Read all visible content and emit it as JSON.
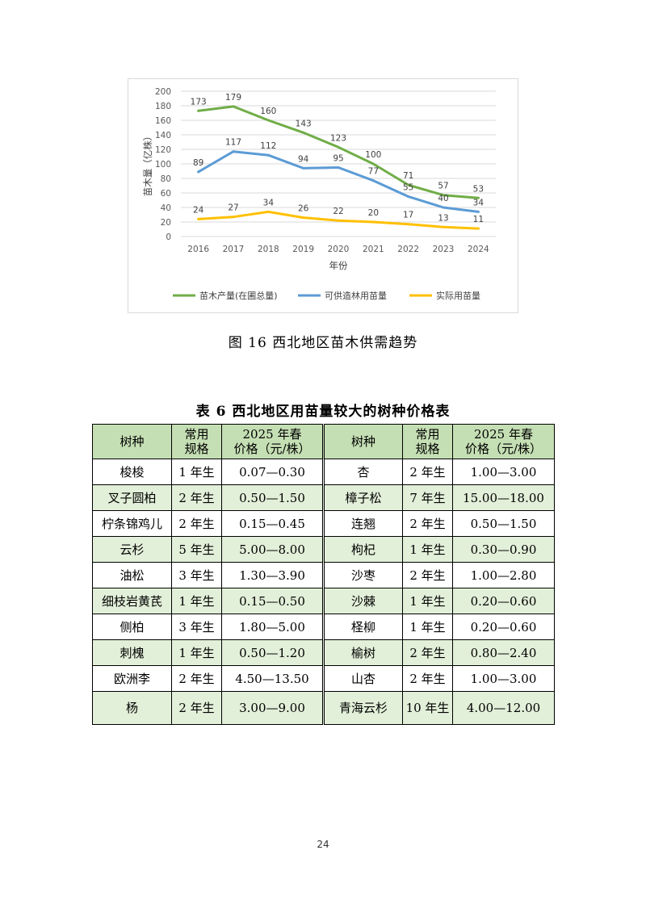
{
  "chart_data": {
    "type": "line",
    "title": "",
    "xlabel": "年份",
    "ylabel": "苗木量（亿株）",
    "x": [
      "2016",
      "2017",
      "2018",
      "2019",
      "2020",
      "2021",
      "2022",
      "2023",
      "2024"
    ],
    "ylim": [
      0,
      200
    ],
    "yticks": [
      "0",
      "20",
      "40",
      "60",
      "80",
      "100",
      "120",
      "140",
      "160",
      "180",
      "200"
    ],
    "grid": true,
    "legend_position": "bottom",
    "series": [
      {
        "name": "苗木产量(在圃总量)",
        "color": "#70ad47",
        "values": [
          173,
          179,
          160,
          143,
          123,
          100,
          71,
          57,
          53
        ]
      },
      {
        "name": "可供造林用苗量",
        "color": "#5b9bd5",
        "values": [
          89,
          117,
          112,
          94,
          95,
          77,
          55,
          40,
          34
        ]
      },
      {
        "name": "实际用苗量",
        "color": "#ffc000",
        "values": [
          24,
          27,
          34,
          26,
          22,
          20,
          17,
          13,
          11
        ]
      }
    ]
  },
  "figure_caption": "图 16  西北地区苗木供需趋势",
  "table": {
    "title": "表 6  西北地区用苗量较大的树种价格表",
    "headers": {
      "species": "树种",
      "spec_line1": "常用",
      "spec_line2": "规格",
      "price_line1": "2025 年春",
      "price_line2": "价格（元/株）"
    },
    "rows": [
      {
        "left": [
          "梭梭",
          "1 年生",
          "0.07—0.30"
        ],
        "right": [
          "杏",
          "2 年生",
          "1.00—3.00"
        ]
      },
      {
        "left": [
          "叉子圆柏",
          "2 年生",
          "0.50—1.50"
        ],
        "right": [
          "樟子松",
          "7 年生",
          "15.00—18.00"
        ]
      },
      {
        "left": [
          "柠条锦鸡儿",
          "2 年生",
          "0.15—0.45"
        ],
        "right": [
          "连翘",
          "2 年生",
          "0.50—1.50"
        ]
      },
      {
        "left": [
          "云杉",
          "5 年生",
          "5.00—8.00"
        ],
        "right": [
          "枸杞",
          "1 年生",
          "0.30—0.90"
        ]
      },
      {
        "left": [
          "油松",
          "3 年生",
          "1.30—3.90"
        ],
        "right": [
          "沙枣",
          "2 年生",
          "1.00—2.80"
        ]
      },
      {
        "left": [
          "细枝岩黄芪",
          "1 年生",
          "0.15—0.50"
        ],
        "right": [
          "沙棘",
          "1 年生",
          "0.20—0.60"
        ]
      },
      {
        "left": [
          "侧柏",
          "3 年生",
          "1.80—5.00"
        ],
        "right": [
          "柽柳",
          "1 年生",
          "0.20—0.60"
        ]
      },
      {
        "left": [
          "刺槐",
          "1 年生",
          "0.50—1.20"
        ],
        "right": [
          "榆树",
          "2 年生",
          "0.80—2.40"
        ]
      },
      {
        "left": [
          "欧洲李",
          "2 年生",
          "4.50—13.50"
        ],
        "right": [
          "山杏",
          "2 年生",
          "1.00—3.00"
        ]
      },
      {
        "left": [
          "杨",
          "2 年生",
          "3.00—9.00"
        ],
        "right": [
          "青海云杉",
          "10 年生",
          "4.00—12.00"
        ]
      }
    ]
  },
  "page_number": "24"
}
